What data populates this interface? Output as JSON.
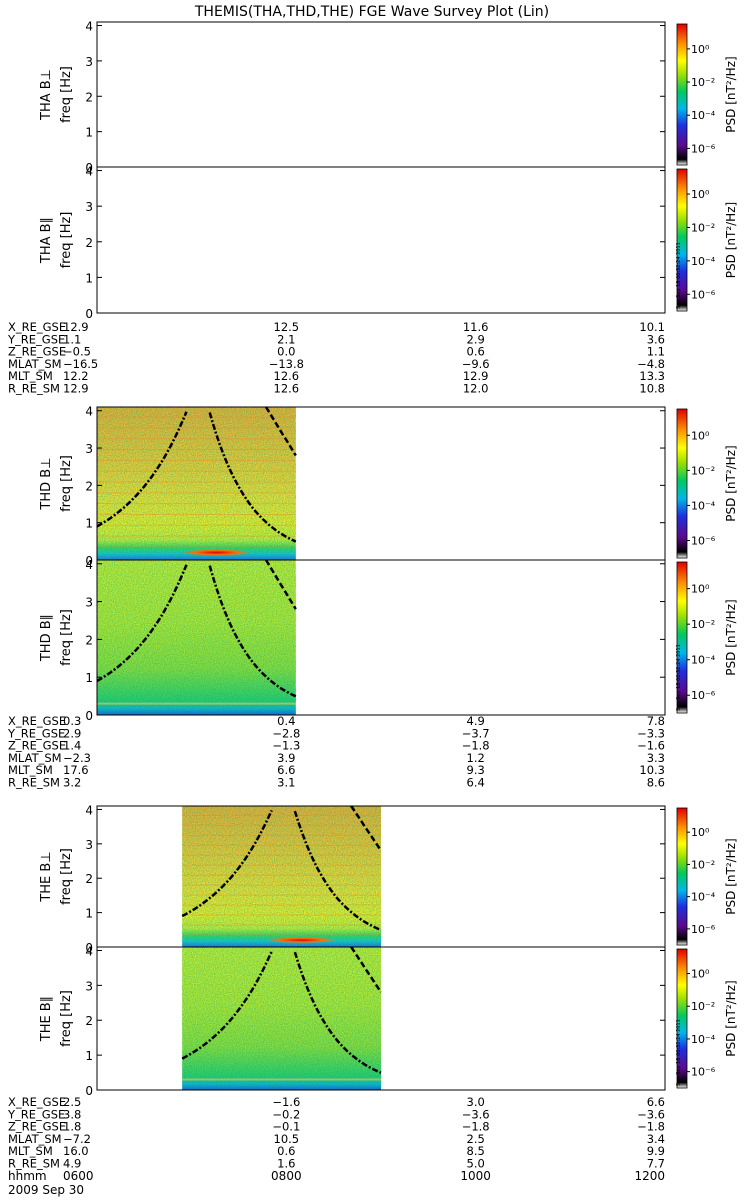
{
  "title": "THEMIS(THA,THD,THE) FGE Wave Survey Plot (Lin)",
  "colorbar": {
    "label": "PSD [nT²/Hz]",
    "ticks": [
      "10⁰",
      "10⁻²",
      "10⁻⁴",
      "10⁻⁶"
    ],
    "tick_values": [
      0,
      -2,
      -4,
      -6
    ],
    "log_range": [
      -7,
      1.5
    ],
    "stamp": "Sun Sep 18 00:32:24 2011"
  },
  "axis": {
    "freq_label": "freq [Hz]",
    "freq_ticks": [
      "0",
      "1",
      "2",
      "3",
      "4"
    ],
    "freq_range": [
      0,
      4.1
    ],
    "time_range_hours": [
      6,
      12
    ]
  },
  "probes": [
    {
      "id": "tha",
      "panels": [
        {
          "label": "THA B⊥",
          "kind": "perp",
          "data_hours": null
        },
        {
          "label": "THA B∥",
          "kind": "par",
          "data_hours": null
        }
      ],
      "ephemeris": [
        {
          "name": "X_RE_GSE",
          "values": [
            "12.9",
            "12.5",
            "11.6",
            "10.1"
          ]
        },
        {
          "name": "Y_RE_GSE",
          "values": [
            "1.1",
            "2.1",
            "2.9",
            "3.6"
          ]
        },
        {
          "name": "Z_RE_GSE",
          "values": [
            "−0.5",
            "0.0",
            "0.6",
            "1.1"
          ]
        },
        {
          "name": "MLAT_SM",
          "values": [
            "−16.5",
            "−13.8",
            "−9.6",
            "−4.8"
          ]
        },
        {
          "name": "MLT_SM",
          "values": [
            "12.2",
            "12.6",
            "12.9",
            "13.3"
          ]
        },
        {
          "name": "R_RE_SM",
          "values": [
            "12.9",
            "12.6",
            "12.0",
            "10.8"
          ]
        }
      ]
    },
    {
      "id": "thd",
      "panels": [
        {
          "label": "THD B⊥",
          "kind": "perp",
          "data_hours": [
            6.0,
            8.1
          ]
        },
        {
          "label": "THD B∥",
          "kind": "par",
          "data_hours": [
            6.0,
            8.1
          ]
        }
      ],
      "ephemeris": [
        {
          "name": "X_RE_GSE",
          "values": [
            "0.3",
            "0.4",
            "4.9",
            "7.8"
          ]
        },
        {
          "name": "Y_RE_GSE",
          "values": [
            "2.9",
            "−2.8",
            "−3.7",
            "−3.3"
          ]
        },
        {
          "name": "Z_RE_GSE",
          "values": [
            "1.4",
            "−1.3",
            "−1.8",
            "−1.6"
          ]
        },
        {
          "name": "MLAT_SM",
          "values": [
            "−2.3",
            "3.9",
            "1.2",
            "3.3"
          ]
        },
        {
          "name": "MLT_SM",
          "values": [
            "17.6",
            "6.6",
            "9.3",
            "10.3"
          ]
        },
        {
          "name": "R_RE_SM",
          "values": [
            "3.2",
            "3.1",
            "6.4",
            "8.6"
          ]
        }
      ]
    },
    {
      "id": "the",
      "panels": [
        {
          "label": "THE B⊥",
          "kind": "perp",
          "data_hours": [
            6.9,
            9.0
          ]
        },
        {
          "label": "THE B∥",
          "kind": "par",
          "data_hours": [
            6.9,
            9.0
          ]
        }
      ],
      "ephemeris": [
        {
          "name": "X_RE_GSE",
          "values": [
            "2.5",
            "−1.6",
            "3.0",
            "6.6"
          ]
        },
        {
          "name": "Y_RE_GSE",
          "values": [
            "3.8",
            "−0.2",
            "−3.6",
            "−3.6"
          ]
        },
        {
          "name": "Z_RE_GSE",
          "values": [
            "1.8",
            "−0.1",
            "−1.8",
            "−1.8"
          ]
        },
        {
          "name": "MLAT_SM",
          "values": [
            "−7.2",
            "10.5",
            "2.5",
            "3.4"
          ]
        },
        {
          "name": "MLT_SM",
          "values": [
            "16.0",
            "0.6",
            "8.5",
            "9.9"
          ]
        },
        {
          "name": "R_RE_SM",
          "values": [
            "4.9",
            "1.6",
            "5.0",
            "7.7"
          ]
        }
      ]
    }
  ],
  "time_axis": {
    "name": "hhmm",
    "values": [
      "0600",
      "0800",
      "1000",
      "1200"
    ],
    "date": "2009 Sep 30"
  },
  "chart_data": [
    {
      "type": "heatmap",
      "title": "THEMIS(THA,THD,THE) FGE Wave Survey Plot (Lin)",
      "panel": "THA B⊥",
      "ylabel": "freq [Hz]",
      "zlabel": "PSD [nT²/Hz]",
      "ylim": [
        0,
        4.1
      ],
      "x": [
        "0600",
        "0800",
        "1000",
        "1200"
      ],
      "data": "none"
    },
    {
      "type": "heatmap",
      "panel": "THA B∥",
      "ylabel": "freq [Hz]",
      "zlabel": "PSD [nT²/Hz]",
      "ylim": [
        0,
        4.1
      ],
      "data": "none"
    },
    {
      "type": "heatmap",
      "panel": "THD B⊥",
      "ylabel": "freq [Hz]",
      "zlabel": "PSD [nT²/Hz]",
      "ylim": [
        0,
        4.1
      ],
      "x_range": [
        "0600",
        "0806"
      ]
    },
    {
      "type": "heatmap",
      "panel": "THD B∥",
      "ylabel": "freq [Hz]",
      "zlabel": "PSD [nT²/Hz]",
      "ylim": [
        0,
        4.1
      ],
      "x_range": [
        "0600",
        "0806"
      ]
    },
    {
      "type": "heatmap",
      "panel": "THE B⊥",
      "ylabel": "freq [Hz]",
      "zlabel": "PSD [nT²/Hz]",
      "ylim": [
        0,
        4.1
      ],
      "x_range": [
        "0654",
        "0900"
      ]
    },
    {
      "type": "heatmap",
      "panel": "THE B∥",
      "ylabel": "freq [Hz]",
      "zlabel": "PSD [nT²/Hz]",
      "ylim": [
        0,
        4.1
      ],
      "x_range": [
        "0654",
        "0900"
      ]
    }
  ]
}
